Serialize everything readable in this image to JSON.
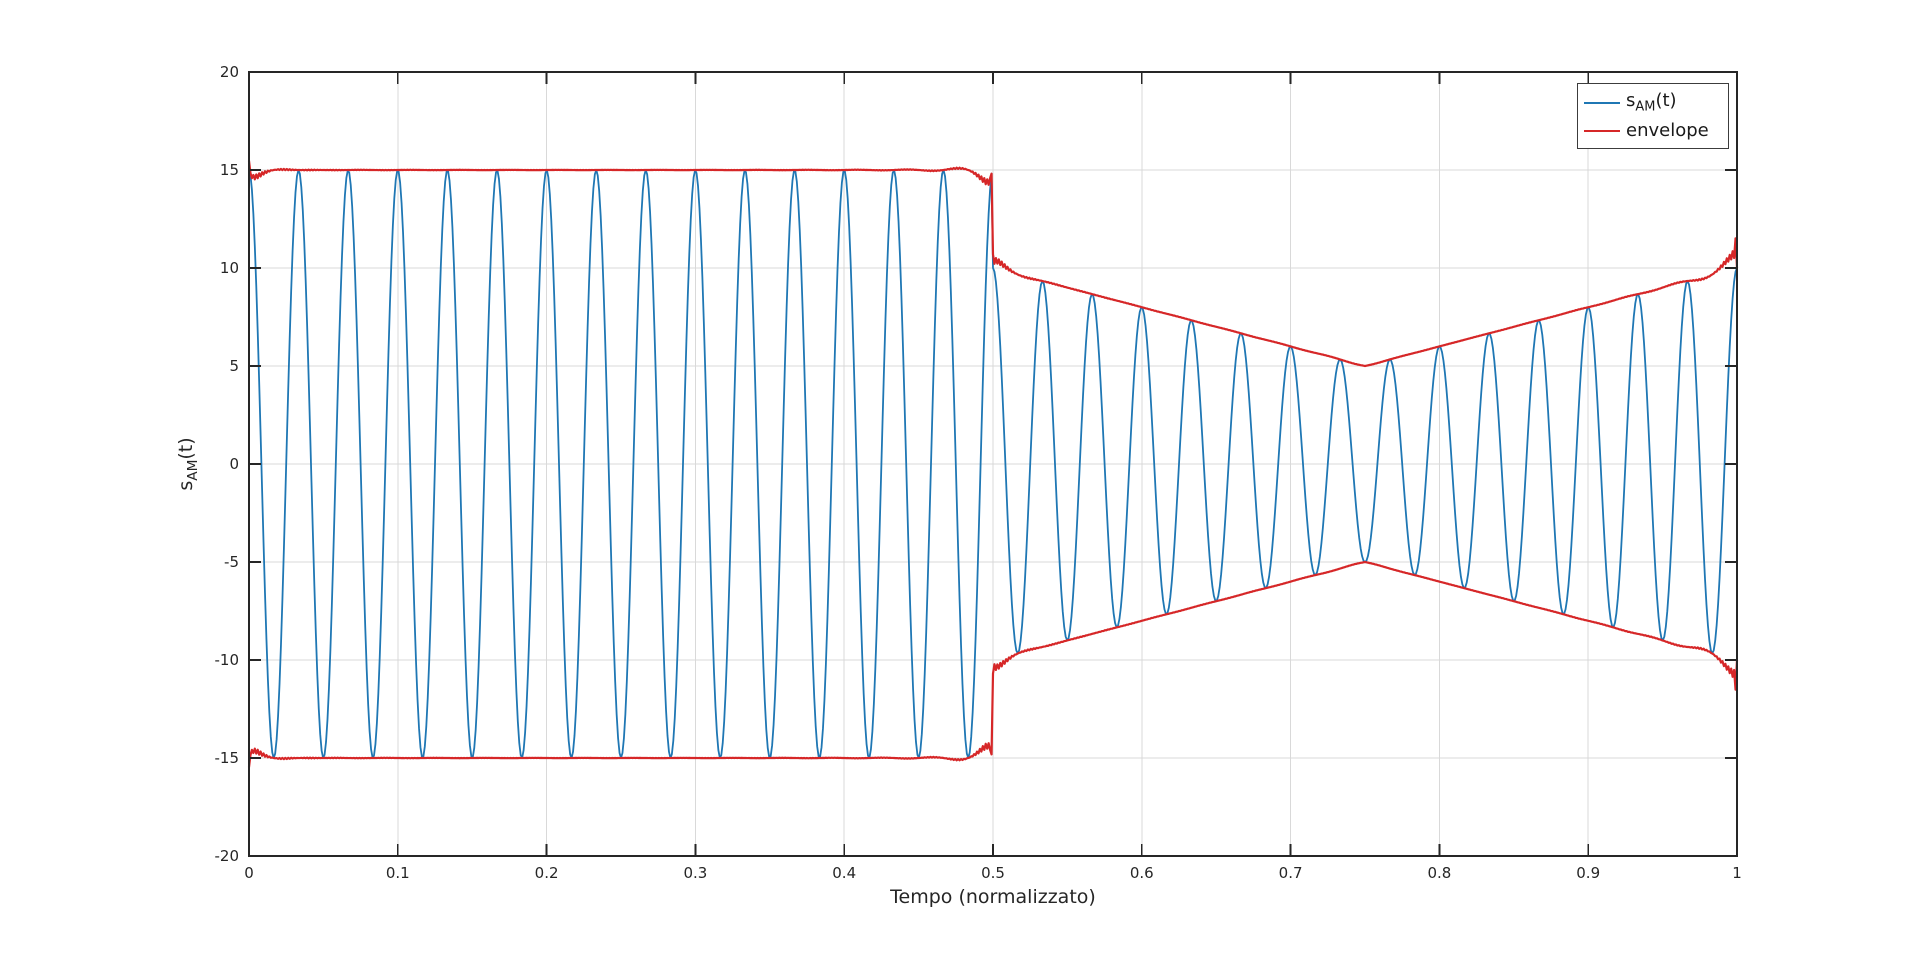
{
  "page": {
    "background": "#ffffff"
  },
  "chart_data": {
    "type": "line",
    "title": "",
    "xlabel": "Tempo (normalizzato)",
    "ylabel": "s_AM(t)",
    "ylabel_parts": {
      "pre": "s",
      "sub": "AM",
      "post": "(t)"
    },
    "xlim": [
      0,
      1
    ],
    "ylim": [
      -20,
      20
    ],
    "xtick_values": [
      0,
      0.1,
      0.2,
      0.3,
      0.4,
      0.5,
      0.6,
      0.7,
      0.8,
      0.9,
      1
    ],
    "xtick_labels": [
      "0",
      "0.1",
      "0.2",
      "0.3",
      "0.4",
      "0.5",
      "0.6",
      "0.7",
      "0.8",
      "0.9",
      "1"
    ],
    "ytick_values": [
      -20,
      -15,
      -10,
      -5,
      0,
      5,
      10,
      15,
      20
    ],
    "ytick_labels": [
      "-20",
      "-15",
      "-10",
      "-5",
      "0",
      "5",
      "10",
      "15",
      "20"
    ],
    "grid": true,
    "box": true,
    "tick_direction": "in",
    "colors": {
      "signal": "#1f77b4",
      "envelope": "#d62728",
      "grid": "#d9d9d9",
      "axis": "#262626",
      "text": "#262626",
      "background": "#ffffff"
    },
    "legend": {
      "position": "top-right",
      "border": true,
      "entries": [
        {
          "label": "s_AM(t)",
          "parts": {
            "pre": "s",
            "sub": "AM",
            "post": "(t)"
          },
          "color": "#1f77b4"
        },
        {
          "label": "envelope",
          "parts": {
            "pre": "envelope",
            "sub": "",
            "post": ""
          },
          "color": "#d62728"
        }
      ]
    },
    "series": [
      {
        "name": "s_AM(t)",
        "color": "#1f77b4",
        "kind": "am_signal",
        "description": "AM waveform s(t) = a(t)*cos(2*pi*30*t); constant amplitude 15 for t<0.5, then envelope ramps 10->5 over [0.5,0.75] and 5->10 over [0.75,1]",
        "carrier_cycles": 30,
        "samples": 1024,
        "amplitude_segments": [
          {
            "t0": 0,
            "t1": 0.5,
            "a0": 15,
            "a1": 15
          },
          {
            "t0": 0.5,
            "t1": 0.75,
            "a0": 10,
            "a1": 5
          },
          {
            "t0": 0.75,
            "t1": 1,
            "a0": 5,
            "a1": 10
          }
        ]
      },
      {
        "name": "envelope",
        "color": "#d62728",
        "kind": "hilbert_envelope",
        "sides": [
          "upper",
          "lower"
        ],
        "notes": "plus/minus magnitude of analytic signal (FFT Hilbert): dip transient near t=0, overshoot ripples at the amplitude step at t=0.5, V-shaped minimum of 5 at t=0.75, endpoints at +/-10 at t=1"
      }
    ]
  }
}
